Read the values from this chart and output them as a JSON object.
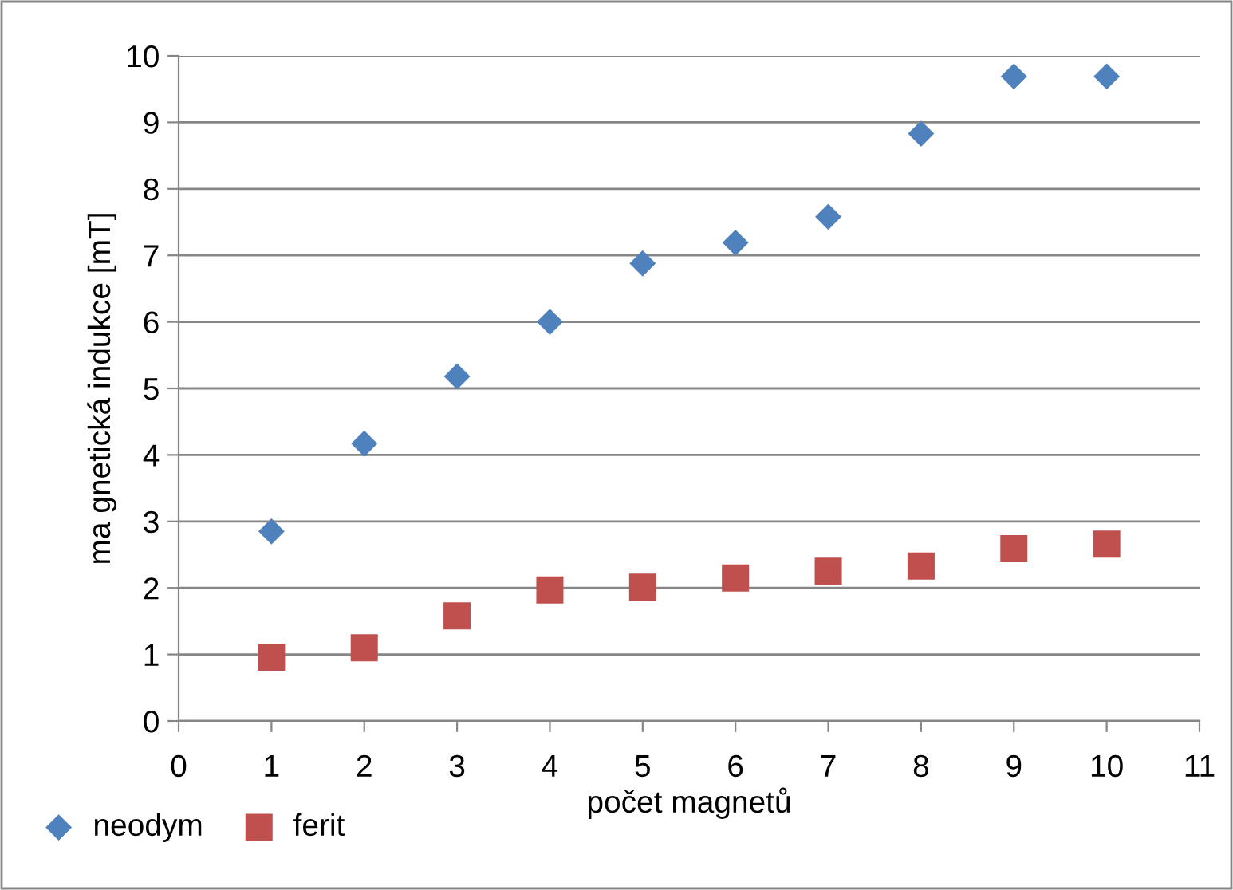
{
  "chart_data": {
    "type": "scatter",
    "xlabel": "počet magnetů",
    "ylabel": "ma gnetická indukce [mT]",
    "x": [
      1,
      2,
      3,
      4,
      5,
      6,
      7,
      8,
      9,
      10
    ],
    "series": [
      {
        "name": "neodym",
        "color": "#4f81bd",
        "marker": "diamond",
        "values": [
          2.85,
          4.17,
          5.18,
          6.0,
          6.88,
          7.19,
          7.58,
          8.83,
          9.69,
          9.69
        ]
      },
      {
        "name": "ferit",
        "color": "#c0504d",
        "marker": "square",
        "values": [
          0.96,
          1.1,
          1.58,
          1.97,
          2.01,
          2.15,
          2.25,
          2.33,
          2.59,
          2.66
        ]
      }
    ],
    "xlim": [
      0,
      11
    ],
    "xticks": [
      0,
      1,
      2,
      3,
      4,
      5,
      6,
      7,
      8,
      9,
      10,
      11
    ],
    "ylim": [
      0,
      10
    ],
    "yticks": [
      0,
      1,
      2,
      3,
      4,
      5,
      6,
      7,
      8,
      9,
      10
    ],
    "grid": "y",
    "legend": "bottom left"
  }
}
